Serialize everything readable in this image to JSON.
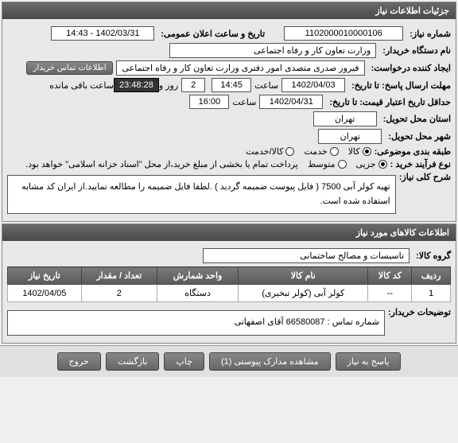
{
  "panel1": {
    "title": "جزئیات اطلاعات نیاز",
    "need_no_label": "شماره نیاز:",
    "need_no": "1102000010000106",
    "announce_label": "تاریخ و ساعت اعلان عمومی:",
    "announce_val": "1402/03/31 - 14:43",
    "buyer_label": "نام دستگاه خریدار:",
    "buyer": "وزارت تعاون کار و رفاه اجتماعی",
    "creator_label": "ایجاد کننده درخواست:",
    "creator": "فیروز صدری متصدی امور دفتری وزارت تعاون کار و رفاه اجتماعی",
    "contact_btn": "اطلاعات تماس خریدار",
    "deadline_label": "مهلت ارسال پاسخ: تا تاریخ:",
    "d_date": "1402/04/03",
    "d_saat_lbl": "ساعت",
    "d_time": "14:45",
    "d_rooz_lbl": "روز و",
    "d_days": "2",
    "d_remain": "23:48:28",
    "d_remain_txt": "ساعت باقی مانده",
    "valid_label": "حداقل تاریخ اعتبار قیمت: تا تاریخ:",
    "v_date": "1402/04/31",
    "v_saat_lbl": "ساعت",
    "v_time": "16:00",
    "loc_label": "استان محل تحویل:",
    "loc": "تهران",
    "city_label": "شهر محل تحویل:",
    "city": "تهران",
    "class_label": "طبقه بندی موضوعی:",
    "process_label": "نوع فرآیند خرید :",
    "pay_note": "پرداخت تمام یا بخشی از مبلغ خرید،از محل \"اسناد خزانه اسلامی\" خواهد بود.",
    "radios_class": [
      {
        "label": "کالا",
        "checked": true
      },
      {
        "label": "خدمت",
        "checked": false
      },
      {
        "label": "کالا/خدمت",
        "checked": false
      }
    ],
    "radios_proc": [
      {
        "label": "جزیی",
        "checked": true
      },
      {
        "label": "متوسط",
        "checked": false
      }
    ],
    "desc_title": "شرح کلی نیاز:",
    "desc": "تهیه کولر آبی 7500  ( فایل پیوست ضمیمه گردید ) .لطفا فایل ضمیمه را مطالعه نمایید.از ایران کد مشابه استفاده شده است."
  },
  "panel2": {
    "title": "اطلاعات کالاهای مورد نیاز",
    "group_label": "گروه کالا:",
    "group": "تاسیسات و مصالح ساختمانی",
    "cols": [
      "ردیف",
      "کد کالا",
      "نام کالا",
      "واحد شمارش",
      "تعداد / مقدار",
      "تاریخ نیاز"
    ],
    "rows": [
      [
        "1",
        "--",
        "کولر آبی (کولر تبخیری)",
        "دستگاه",
        "2",
        "1402/04/05"
      ]
    ],
    "buyer_note_label": "توضیحات خریدار:",
    "buyer_note": "شماره تماس : 66580087 آقای اصفهانی"
  },
  "buttons": {
    "reply": "پاسخ به نیاز",
    "attach": "مشاهده مدارک پیوستی (1)",
    "print": "چاپ",
    "back": "بازگشت",
    "exit": "خروج"
  }
}
